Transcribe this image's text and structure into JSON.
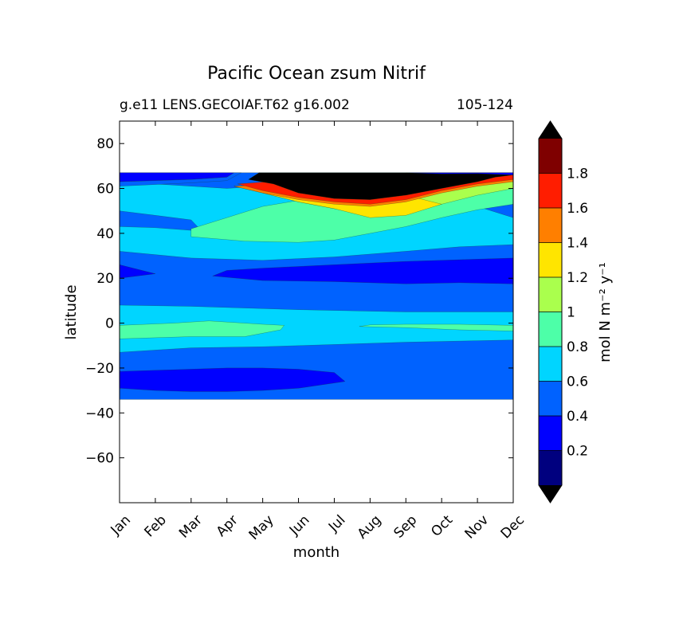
{
  "chart_data": {
    "type": "heatmap",
    "title": "Pacific Ocean zsum Nitrif",
    "subtitle_left": "g.e11 LENS.GECOIAF.T62 g16.002",
    "subtitle_right": "105-124",
    "xlabel": "month",
    "ylabel": "latitude",
    "x_ticks": [
      "Jan",
      "Feb",
      "Mar",
      "Apr",
      "May",
      "Jun",
      "Jul",
      "Aug",
      "Sep",
      "Oct",
      "Nov",
      "Dec"
    ],
    "y_ticks": [
      {
        "value": 80,
        "label": "80"
      },
      {
        "value": 60,
        "label": "60"
      },
      {
        "value": 40,
        "label": "40"
      },
      {
        "value": 20,
        "label": "20"
      },
      {
        "value": 0,
        "label": "0"
      },
      {
        "value": -20,
        "label": "−20"
      },
      {
        "value": -40,
        "label": "−40"
      },
      {
        "value": -60,
        "label": "−60"
      }
    ],
    "xlim": [
      0,
      11
    ],
    "ylim": [
      -80,
      90
    ],
    "data_lat_range": [
      -34,
      67
    ],
    "colorbar": {
      "label": "mol N m⁻² y⁻¹",
      "levels": [
        0,
        0.2,
        0.4,
        0.6,
        0.8,
        1.0,
        1.2,
        1.4,
        1.6,
        1.8,
        2.0
      ],
      "colors": [
        "#00007f",
        "#0000ff",
        "#0062ff",
        "#00d5ff",
        "#4dffa8",
        "#aaff4d",
        "#ffe500",
        "#ff7f00",
        "#ff1d00",
        "#7f0000"
      ],
      "under_color": "#000000",
      "over_color": "#000000",
      "tick_labels": [
        {
          "value": 0.2,
          "label": "0.2"
        },
        {
          "value": 0.4,
          "label": "0.4"
        },
        {
          "value": 0.6,
          "label": "0.6"
        },
        {
          "value": 0.8,
          "label": "0.8"
        },
        {
          "value": 1.0,
          "label": "1"
        },
        {
          "value": 1.2,
          "label": "1.2"
        },
        {
          "value": 1.4,
          "label": "1.4"
        },
        {
          "value": 1.6,
          "label": "1.6"
        },
        {
          "value": 1.8,
          "label": "1.8"
        }
      ]
    },
    "bands": [
      {
        "level": 0.5,
        "points": [
          [
            0,
            -34
          ],
          [
            11,
            -34
          ],
          [
            11,
            67
          ],
          [
            0,
            67
          ]
        ]
      },
      {
        "level": 0.3,
        "points": [
          [
            0,
            -29
          ],
          [
            1,
            -30
          ],
          [
            2,
            -30.5
          ],
          [
            3,
            -30.5
          ],
          [
            4,
            -30
          ],
          [
            5,
            -29
          ],
          [
            6.3,
            -26
          ],
          [
            6,
            -22
          ],
          [
            5,
            -20.5
          ],
          [
            4,
            -20
          ],
          [
            3,
            -20
          ],
          [
            2,
            -20.5
          ],
          [
            1,
            -21
          ],
          [
            0,
            -21.5
          ]
        ]
      },
      {
        "level": 0.7,
        "points": [
          [
            0,
            -13
          ],
          [
            2,
            -11
          ],
          [
            4,
            -10.5
          ],
          [
            6,
            -9.5
          ],
          [
            8,
            -8.5
          ],
          [
            9.5,
            -8
          ],
          [
            11,
            -7.5
          ],
          [
            11,
            5
          ],
          [
            8,
            5
          ],
          [
            5,
            6
          ],
          [
            2,
            7.5
          ],
          [
            0,
            8
          ]
        ]
      },
      {
        "level": 0.9,
        "points": [
          [
            0,
            -7
          ],
          [
            2,
            -6
          ],
          [
            3.5,
            -6
          ],
          [
            4.5,
            -3
          ],
          [
            4.6,
            -1
          ],
          [
            4,
            -0.5
          ],
          [
            3,
            0.5
          ],
          [
            2.5,
            1
          ],
          [
            1.5,
            0
          ],
          [
            0,
            -1
          ]
        ]
      },
      {
        "level": 0.9,
        "points": [
          [
            6.7,
            -1.5
          ],
          [
            8,
            -2
          ],
          [
            9.5,
            -3
          ],
          [
            11,
            -3.5
          ],
          [
            11,
            -1
          ],
          [
            9.5,
            -0.5
          ],
          [
            8,
            -0.5
          ],
          [
            7,
            -0.8
          ]
        ]
      },
      {
        "level": 0.3,
        "points": [
          [
            0,
            20
          ],
          [
            1,
            22
          ],
          [
            0,
            26
          ]
        ]
      },
      {
        "level": 0.3,
        "points": [
          [
            2.6,
            21
          ],
          [
            4,
            19
          ],
          [
            6,
            18.5
          ],
          [
            8,
            17.5
          ],
          [
            9.5,
            18
          ],
          [
            11,
            17.5
          ],
          [
            11,
            29
          ],
          [
            10,
            28.5
          ],
          [
            8,
            27.5
          ],
          [
            6,
            26
          ],
          [
            4,
            24.5
          ],
          [
            3,
            23.5
          ]
        ]
      },
      {
        "level": 0.7,
        "points": [
          [
            0,
            32
          ],
          [
            2,
            29
          ],
          [
            4,
            28
          ],
          [
            6,
            29.5
          ],
          [
            8,
            32
          ],
          [
            9.5,
            34
          ],
          [
            11,
            35
          ],
          [
            11,
            47
          ],
          [
            10,
            52
          ],
          [
            9,
            56
          ],
          [
            8,
            59
          ],
          [
            7,
            61
          ],
          [
            6,
            62
          ],
          [
            5,
            62
          ],
          [
            4,
            61
          ],
          [
            3,
            60
          ],
          [
            2,
            61
          ],
          [
            1,
            62
          ],
          [
            0,
            62
          ]
        ]
      },
      {
        "level": 0.5,
        "points": [
          [
            0,
            50
          ],
          [
            1,
            48
          ],
          [
            2,
            46
          ],
          [
            2.3,
            41
          ],
          [
            1,
            42.5
          ],
          [
            0,
            43
          ]
        ]
      },
      {
        "level": 0.9,
        "points": [
          [
            2,
            38.5
          ],
          [
            3.5,
            36.5
          ],
          [
            5,
            36
          ],
          [
            6,
            37
          ],
          [
            7,
            40
          ],
          [
            8,
            43
          ],
          [
            9,
            47
          ],
          [
            10,
            50.5
          ],
          [
            11,
            53
          ],
          [
            11,
            61
          ],
          [
            9,
            60
          ],
          [
            7,
            58
          ],
          [
            5.5,
            56
          ],
          [
            4,
            52
          ],
          [
            3,
            47
          ],
          [
            2,
            42
          ]
        ]
      },
      {
        "level": 1.1,
        "points": [
          [
            4,
            58
          ],
          [
            5,
            54
          ],
          [
            6,
            51
          ],
          [
            7,
            48
          ],
          [
            8,
            49
          ],
          [
            9,
            53
          ],
          [
            10,
            57
          ],
          [
            11,
            60
          ],
          [
            11,
            64
          ],
          [
            7,
            62
          ],
          [
            5,
            61
          ]
        ]
      },
      {
        "level": 1.3,
        "points": [
          [
            3.2,
            61
          ],
          [
            4,
            58
          ],
          [
            5,
            54
          ],
          [
            6,
            51
          ],
          [
            7,
            47
          ],
          [
            8,
            48
          ],
          [
            9,
            53
          ],
          [
            8,
            57
          ],
          [
            7,
            60
          ],
          [
            6,
            62
          ]
        ]
      },
      {
        "level": 1.5,
        "points": [
          [
            3.2,
            61
          ],
          [
            4,
            58
          ],
          [
            5,
            55
          ],
          [
            6,
            53
          ],
          [
            7,
            52
          ],
          [
            8,
            54
          ],
          [
            9,
            58
          ],
          [
            10,
            61
          ],
          [
            11,
            63
          ],
          [
            11,
            66
          ],
          [
            9,
            65
          ],
          [
            6,
            63
          ]
        ]
      },
      {
        "level": 1.7,
        "points": [
          [
            3.3,
            62
          ],
          [
            4,
            59
          ],
          [
            5,
            56
          ],
          [
            6,
            54
          ],
          [
            7,
            53
          ],
          [
            8,
            55
          ],
          [
            9,
            59
          ],
          [
            10,
            62
          ],
          [
            11,
            64
          ],
          [
            11,
            66
          ],
          [
            8,
            65
          ],
          [
            5,
            64
          ]
        ]
      },
      {
        "level": 2.1,
        "points": [
          [
            3.6,
            64
          ],
          [
            4.3,
            62
          ],
          [
            5,
            58
          ],
          [
            6,
            55.5
          ],
          [
            7,
            55
          ],
          [
            8,
            57
          ],
          [
            9,
            60
          ],
          [
            10,
            63
          ],
          [
            10.5,
            65
          ],
          [
            11,
            66
          ],
          [
            11,
            67
          ],
          [
            3.9,
            67
          ]
        ]
      },
      {
        "level": 0.3,
        "points": [
          [
            0,
            63
          ],
          [
            2,
            64
          ],
          [
            3,
            65
          ],
          [
            3.2,
            67
          ],
          [
            0,
            67
          ]
        ]
      },
      {
        "level": 0.5,
        "points": [
          [
            0,
            61
          ],
          [
            2,
            62.5
          ],
          [
            3,
            63.5
          ],
          [
            3.4,
            67
          ],
          [
            3.2,
            67
          ],
          [
            3,
            65
          ],
          [
            2,
            64
          ],
          [
            0,
            63
          ]
        ]
      },
      {
        "level": 0.3,
        "points": [
          [
            8,
            67
          ],
          [
            9,
            66.5
          ],
          [
            10,
            66.6
          ],
          [
            11,
            66
          ],
          [
            11,
            67
          ]
        ]
      }
    ]
  }
}
